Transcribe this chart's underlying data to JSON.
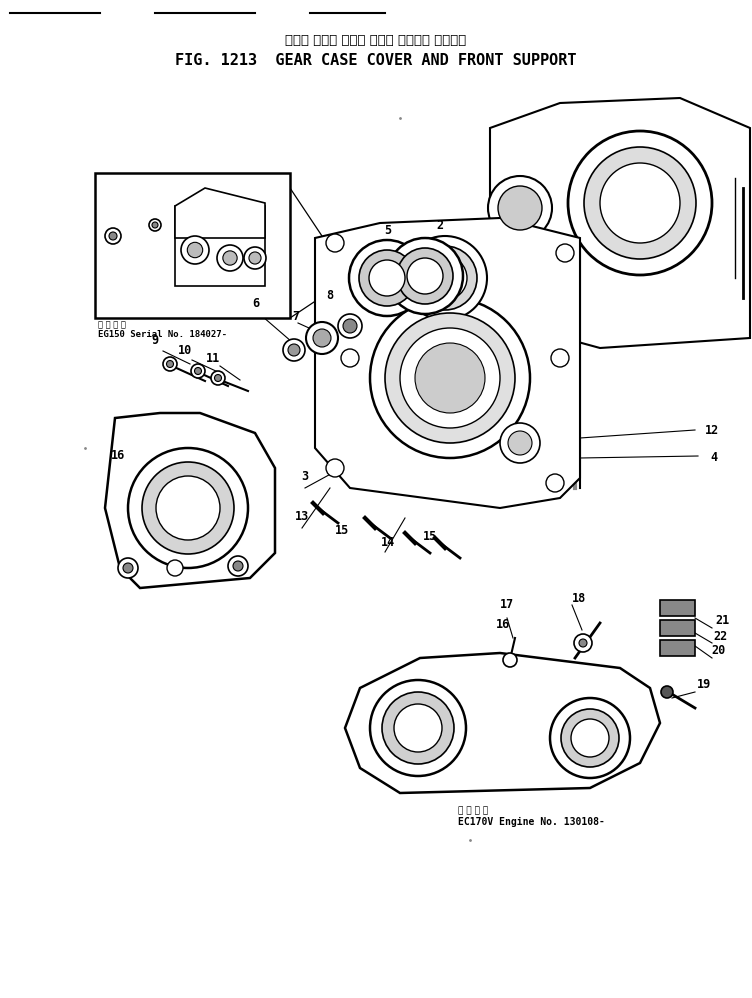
{
  "title_japanese": "ギヤー ケース カバー および フロント サポート",
  "title_english": "FIG. 1213  GEAR CASE COVER AND FRONT SUPPORT",
  "bg_color": "#ffffff",
  "fig_width": 7.52,
  "fig_height": 9.98,
  "dpi": 100,
  "inset_label_japanese": "適 用 車 種",
  "inset_label_english": "EG150 Serial No. 184027-",
  "bottom_label_japanese": "適 用 車 種",
  "bottom_label_english": "EC170V Engine No. 130108-",
  "text_color": "#000000"
}
